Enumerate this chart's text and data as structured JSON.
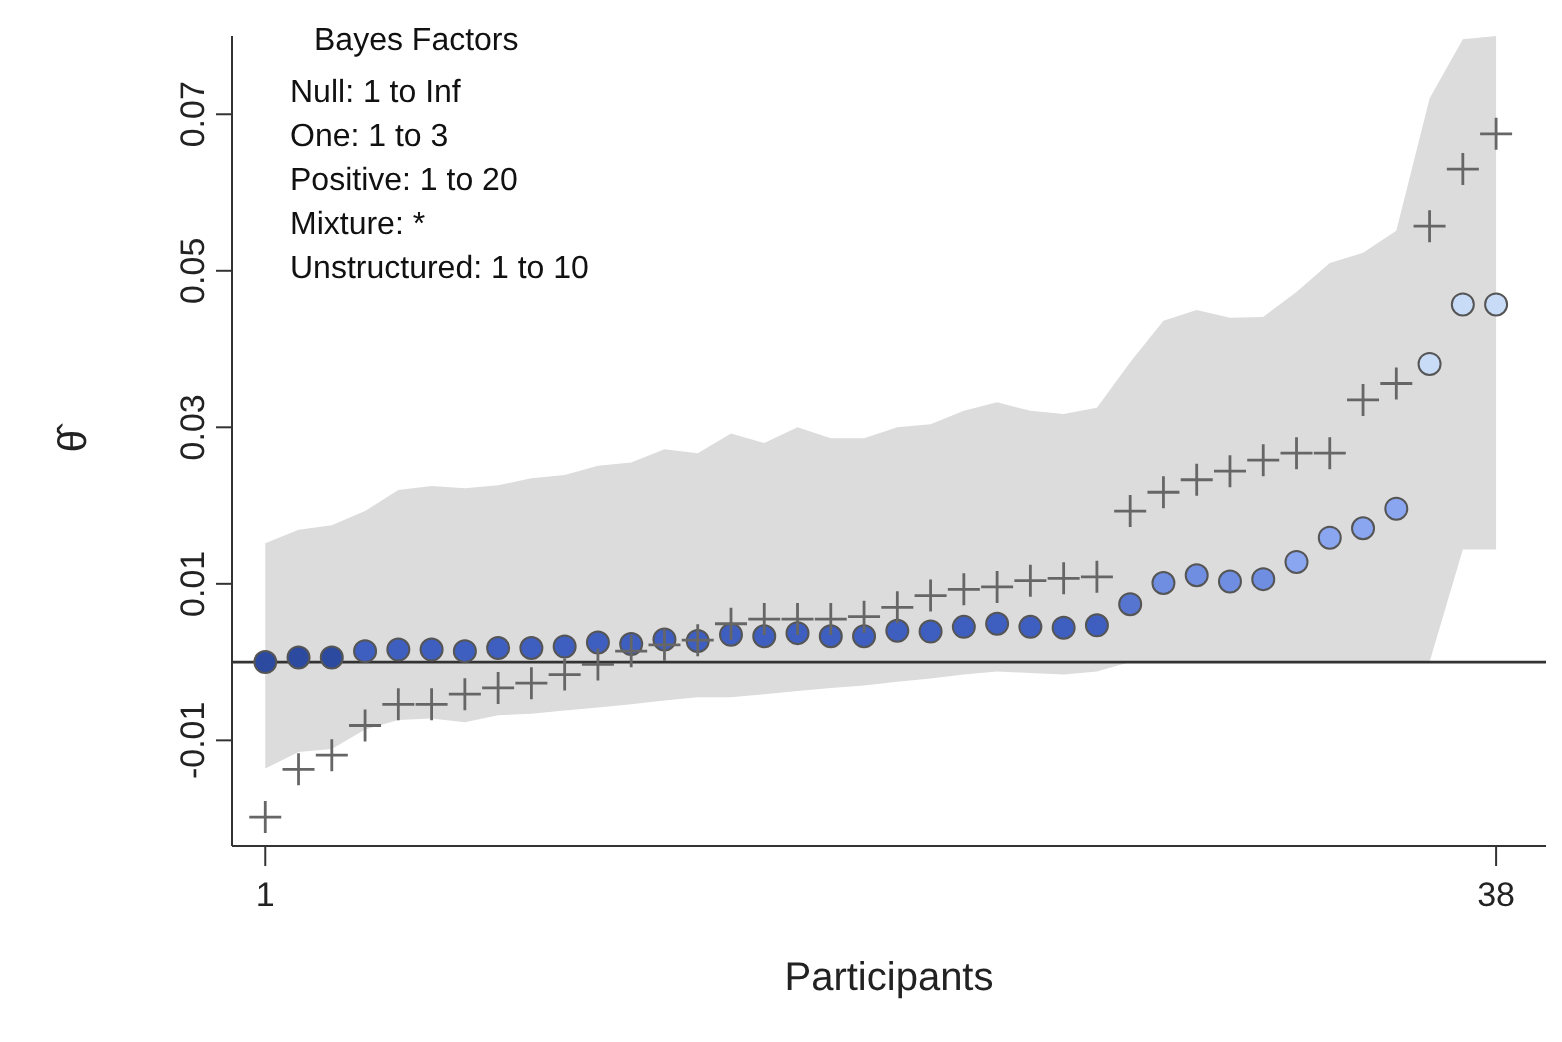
{
  "chart_data": {
    "type": "scatter",
    "xlabel": "Participants",
    "ylabel": "θ̂",
    "annotations": [
      "Bayes Factors",
      "Null: 1 to Inf",
      "One: 1 to 3",
      "Positive: 1 to 20",
      "Mixture: *",
      "Unstructured: 1 to 10"
    ],
    "x": [
      1,
      2,
      3,
      4,
      5,
      6,
      7,
      8,
      9,
      10,
      11,
      12,
      13,
      14,
      15,
      16,
      17,
      18,
      19,
      20,
      21,
      22,
      23,
      24,
      25,
      26,
      27,
      28,
      29,
      30,
      31,
      32,
      33,
      34,
      35,
      36,
      37,
      38
    ],
    "series": [
      {
        "marker": "cross",
        "color": "#666666",
        "values": [
          -0.0198,
          -0.0137,
          -0.0119,
          -0.0081,
          -0.0054,
          -0.0054,
          -0.0041,
          -0.0033,
          -0.0027,
          -0.0016,
          -0.0003,
          0.0014,
          0.0022,
          0.0028,
          0.0049,
          0.0055,
          0.0055,
          0.0055,
          0.0058,
          0.007,
          0.0085,
          0.0093,
          0.0096,
          0.0104,
          0.0107,
          0.0109,
          0.0193,
          0.0217,
          0.0233,
          0.0244,
          0.0258,
          0.0267,
          0.0267,
          0.0335,
          0.0356,
          0.0557,
          0.063,
          0.0675
        ]
      },
      {
        "marker": "circle",
        "values": [
          0,
          0.0006,
          0.0006,
          0.0014,
          0.0016,
          0.0016,
          0.0014,
          0.0018,
          0.0018,
          0.002,
          0.0025,
          0.0023,
          0.0029,
          0.0027,
          0.0035,
          0.0033,
          0.0037,
          0.0033,
          0.0033,
          0.004,
          0.0039,
          0.0045,
          0.0049,
          0.0045,
          0.0044,
          0.0047,
          0.0074,
          0.0101,
          0.0111,
          0.0103,
          0.0106,
          0.0128,
          0.0159,
          0.0171,
          0.0196,
          0.0381,
          0.0457,
          0.0457
        ],
        "colors": [
          "#2b4aa0",
          "#2b4aa0",
          "#2b4aa0",
          "#3f5fc0",
          "#3f5fc0",
          "#3f5fc0",
          "#3f5fc0",
          "#3f5fc0",
          "#3f5fc0",
          "#3f5fc0",
          "#3f5fc0",
          "#3f5fc0",
          "#3f5fc0",
          "#3f5fc0",
          "#3f5fc0",
          "#3f5fc0",
          "#3f5fc0",
          "#3f5fc0",
          "#3f5fc0",
          "#3f5fc0",
          "#3f5fc0",
          "#3f5fc0",
          "#3f5fc0",
          "#3f5fc0",
          "#3f5fc0",
          "#3f5fc0",
          "#5575d0",
          "#6f8ee2",
          "#6f8ee2",
          "#6f8ee2",
          "#6f8ee2",
          "#8aa6f0",
          "#8aa6f0",
          "#8aa6f0",
          "#8aa6f0",
          "#c8dcf8",
          "#c8dcf8",
          "#c8dcf8"
        ],
        "lower": [
          -0.0136,
          -0.0115,
          -0.0111,
          -0.0086,
          -0.0074,
          -0.0072,
          -0.0077,
          -0.0068,
          -0.0066,
          -0.0062,
          -0.0058,
          -0.0054,
          -0.0049,
          -0.0045,
          -0.0045,
          -0.0041,
          -0.0037,
          -0.0033,
          -0.003,
          -0.0025,
          -0.0021,
          -0.0016,
          -0.0012,
          -0.0014,
          -0.0016,
          -0.0012,
          0,
          0,
          0,
          0,
          0,
          0,
          0,
          0,
          0,
          0,
          0.0144,
          0.0144
        ],
        "upper": [
          0.0152,
          0.0169,
          0.0175,
          0.0193,
          0.022,
          0.0225,
          0.0222,
          0.0226,
          0.0235,
          0.0239,
          0.0251,
          0.0255,
          0.0272,
          0.0267,
          0.0292,
          0.028,
          0.03,
          0.0286,
          0.0286,
          0.03,
          0.0304,
          0.0321,
          0.0332,
          0.0321,
          0.0317,
          0.0325,
          0.0383,
          0.0436,
          0.045,
          0.044,
          0.0441,
          0.0473,
          0.051,
          0.0523,
          0.0551,
          0.072,
          0.0796,
          0.08
        ]
      }
    ],
    "xlim": [
      0,
      39.5
    ],
    "xticks": [
      1,
      38
    ],
    "ylim": [
      -0.0235,
      0.08
    ],
    "yticks": [
      -0.01,
      0.01,
      0.03,
      0.05,
      0.07
    ],
    "ref_lines": [
      {
        "axis": "y",
        "value": 0,
        "color": "#333333"
      }
    ],
    "grid": false
  }
}
